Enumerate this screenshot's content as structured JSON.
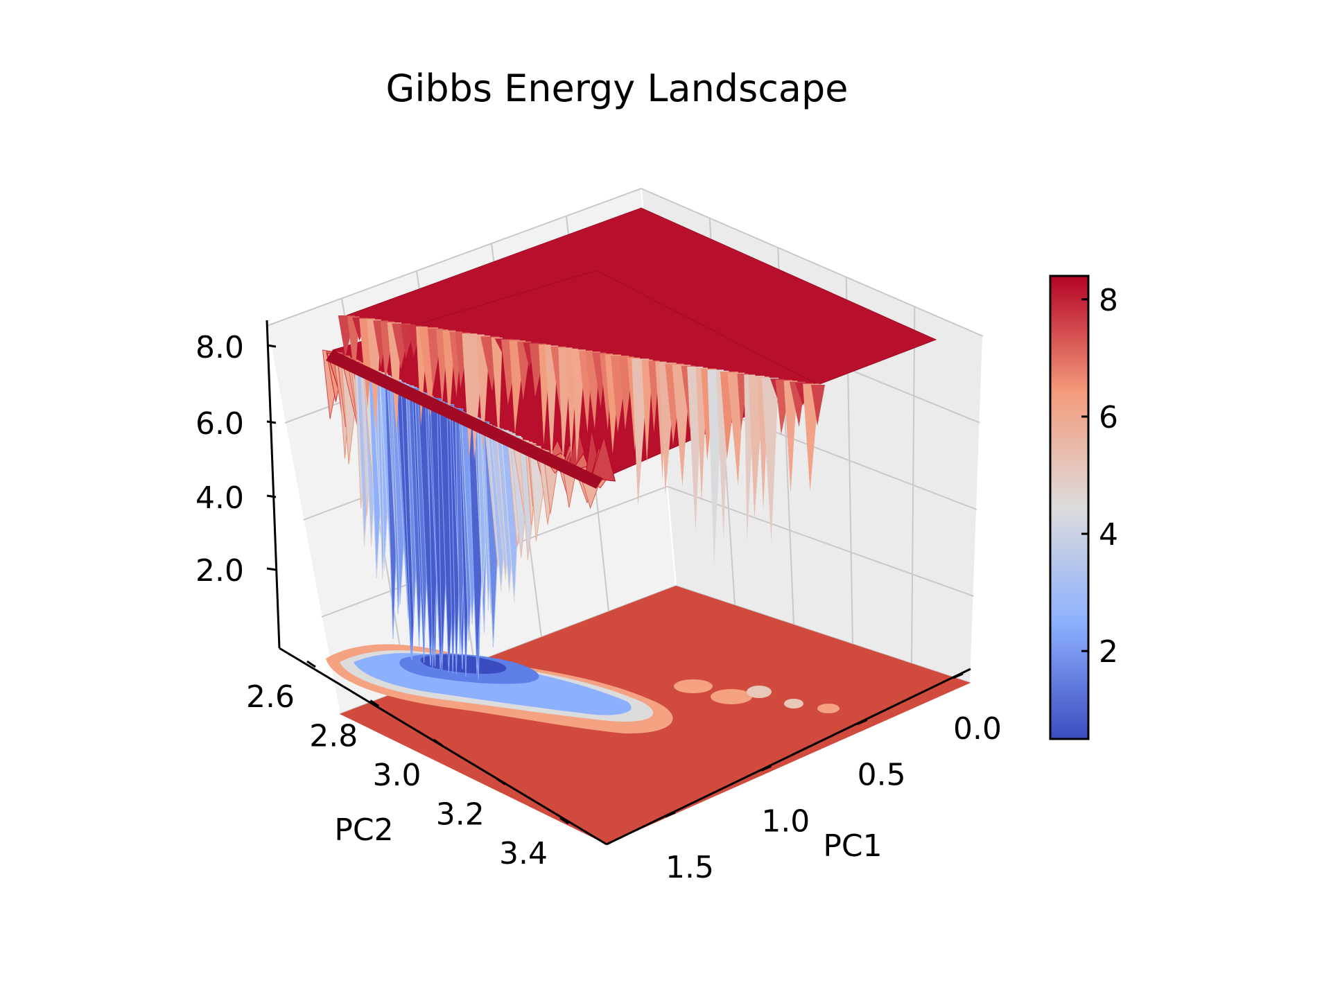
{
  "chart_data": {
    "type": "surface3d",
    "title": "Gibbs Energy Landscape",
    "xlabel": "PC1",
    "ylabel": "PC2",
    "zlabel": "",
    "x_ticks": [
      "0.0",
      "0.5",
      "1.0",
      "1.5"
    ],
    "y_ticks": [
      "2.6",
      "2.8",
      "3.0",
      "3.2",
      "3.4"
    ],
    "z_ticks": [
      "2.0",
      "4.0",
      "6.0",
      "8.0"
    ],
    "colorbar_ticks": [
      "2",
      "4",
      "6",
      "8"
    ],
    "colormap": "coolwarm",
    "xlim": [
      -0.1,
      1.9
    ],
    "ylim": [
      2.55,
      3.45
    ],
    "zlim": [
      0.5,
      8.5
    ],
    "colorbar_range": [
      0.5,
      8.4
    ],
    "grid": true,
    "plateau_value": 8.2,
    "floor_contour": "filled contour projected on z-min plane",
    "minima": [
      {
        "x": 1.2,
        "y": 2.75,
        "z": 0.8
      },
      {
        "x": 1.05,
        "y": 2.8,
        "z": 1.3
      },
      {
        "x": 0.95,
        "y": 2.72,
        "z": 1.8
      },
      {
        "x": 0.8,
        "y": 2.78,
        "z": 3.0
      },
      {
        "x": 0.6,
        "y": 2.85,
        "z": 4.8
      },
      {
        "x": 0.35,
        "y": 2.95,
        "z": 6.0
      },
      {
        "x": 0.15,
        "y": 3.05,
        "z": 6.4
      }
    ]
  }
}
